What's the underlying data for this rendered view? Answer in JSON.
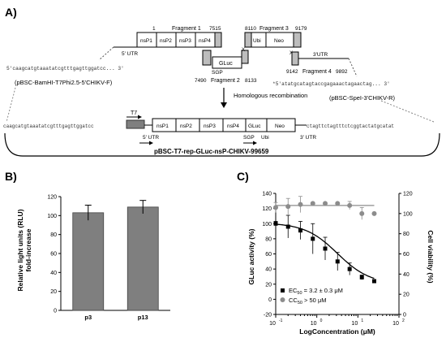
{
  "panel_a": {
    "label": "A)",
    "frag1_title": "Fragment 1",
    "frag1_start": "1",
    "frag1_end": "7515",
    "frag2_start": "7490",
    "frag2_title": "Fragment 2",
    "frag2_end": "8133",
    "frag3_start": "8110",
    "frag3_title": "Fragment 3",
    "frag3_end": "9179",
    "frag4_start": "9142",
    "frag4_title": "Fragment 4",
    "frag4_end": "9892",
    "utr5": "5' UTR",
    "utr3": "3'UTR",
    "ns1": "nsP1",
    "ns2": "nsP2",
    "ns3": "nsP3",
    "ns4": "nsP4",
    "sgp": "SGP",
    "gluc": "GLuc",
    "ubi": "Ubi",
    "neo": "Neo",
    "x_mark": "X",
    "seq_left": "5'caagcatgtaaatatcgtttgagttggatcc... 3'",
    "plasmid_left": "(pBSC-BamHI-T7Phi2.5-5'CHIKV-F)",
    "seq_right": "*5'atatgcatagtaccgagaaactagaactag... 3'",
    "plasmid_right": "(pBSC-SpeI-3'CHIKV-R)",
    "recomb": "Homologous recombination",
    "t7": "T7",
    "seq_final_left": "caagcatgtaaatatcgtttgagttggatcc",
    "seq_final_right": "ctagttctagtttctcggtactatgcatat",
    "f_ns1": "nsP1",
    "f_ns2": "nsP2",
    "f_ns3": "nsP3",
    "f_ns4": "nsP4",
    "f_gluc": "GLuc",
    "f_neo": "Neo",
    "f_sgp": "SGP",
    "f_ubi": "Ubi",
    "f_utr5": "5' UTR",
    "f_utr3": "3' UTR",
    "final_name": "pBSC-T7-rep-GLuc-nsP-CHIKV-99659"
  },
  "panel_b": {
    "label": "B)",
    "ylabel_1": "Relative light units (RLU)",
    "ylabel_2": "fold-increase",
    "ticks": [
      "0",
      "20",
      "40",
      "60",
      "80",
      "100",
      "120"
    ]
  },
  "panel_c": {
    "label": "C)",
    "ylabel_left": "GLuc activity (%)",
    "ylabel_right": "Cell viability (%)",
    "xlabel": "LogConcentration (μM)",
    "left_ticks": [
      "-20",
      "0",
      "20",
      "40",
      "60",
      "80",
      "100",
      "120",
      "140"
    ],
    "right_ticks": [
      "0",
      "20",
      "40",
      "60",
      "80",
      "100",
      "120"
    ],
    "legend_ec50": "EC50 = 3.2 ± 0.3 μM",
    "legend_cc50": "CC50 > 50 μM"
  },
  "chart_data": [
    {
      "type": "bar",
      "categories": [
        "p3",
        "p13"
      ],
      "values": [
        103,
        109
      ],
      "errors": [
        8,
        7
      ],
      "title": "",
      "xlabel": "",
      "ylabel": "Relative light units (RLU) fold-increase",
      "ylim": [
        0,
        120
      ],
      "color": "#7f7f7f"
    },
    {
      "type": "scatter",
      "x_scale": "log",
      "xlim": [
        0.1,
        100
      ],
      "xlabel": "LogConcentration (μM)",
      "series": [
        {
          "name": "EC50 = 3.2 ± 0.3 μM",
          "axis": "left",
          "marker": "square",
          "color": "#000000",
          "x": [
            0.1,
            0.2,
            0.4,
            0.8,
            1.6,
            3.2,
            6.3,
            12.5,
            25
          ],
          "y": [
            100,
            96,
            91,
            80,
            67,
            50,
            40,
            29,
            24
          ],
          "err": [
            3,
            15,
            12,
            20,
            15,
            12,
            8,
            3,
            2
          ],
          "fit": "sigmoid"
        },
        {
          "name": "CC50 > 50 μM",
          "axis": "right",
          "marker": "circle",
          "color": "#8c8c8c",
          "x": [
            0.1,
            0.2,
            0.4,
            0.8,
            1.6,
            3.2,
            6.3,
            12.5,
            25
          ],
          "y": [
            106,
            107,
            109,
            110,
            110,
            110,
            108,
            100,
            100
          ],
          "err": [
            5,
            8,
            8,
            0,
            0,
            0,
            4,
            6,
            0
          ],
          "fit": "flat"
        }
      ],
      "ylim_left": [
        -20,
        140
      ],
      "ylim_right": [
        0,
        120
      ]
    }
  ]
}
